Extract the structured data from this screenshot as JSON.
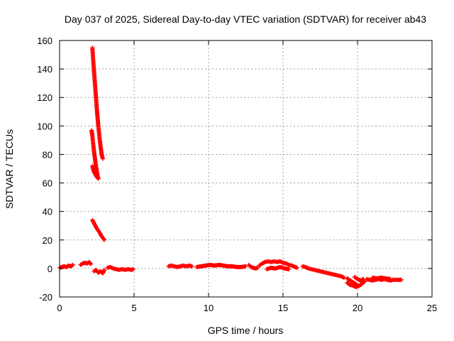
{
  "chart_data": {
    "type": "scatter",
    "title": "Day 037 of 2025, Sidereal Day-to-day VTEC variation (SDTVAR) for receiver ab43",
    "xlabel": "GPS time / hours",
    "ylabel": "SDTVAR / TECUs",
    "xlim": [
      0,
      25
    ],
    "ylim": [
      -20,
      160
    ],
    "xticks": [
      0,
      5,
      10,
      15,
      20,
      25
    ],
    "yticks": [
      -20,
      0,
      20,
      40,
      60,
      80,
      100,
      120,
      140,
      160
    ],
    "grid": true,
    "marker": "plus",
    "color": "#ff0000",
    "series": [
      {
        "name": "SDTVAR",
        "segments": [
          [
            [
              0.0,
              0.5
            ],
            [
              0.15,
              1.0
            ],
            [
              0.3,
              1.5
            ],
            [
              0.45,
              1.0
            ],
            [
              0.6,
              2.0
            ],
            [
              0.75,
              1.5
            ],
            [
              0.9,
              2.5
            ]
          ],
          [
            [
              1.4,
              2.5
            ],
            [
              1.55,
              3.5
            ],
            [
              1.7,
              4.0
            ],
            [
              1.85,
              3.5
            ],
            [
              2.0,
              4.5
            ],
            [
              2.1,
              3.0
            ]
          ],
          [
            [
              2.2,
              155
            ],
            [
              2.25,
              147
            ],
            [
              2.3,
              140
            ],
            [
              2.35,
              133
            ],
            [
              2.4,
              126
            ],
            [
              2.45,
              119
            ],
            [
              2.5,
              112
            ],
            [
              2.55,
              106
            ],
            [
              2.6,
              100
            ],
            [
              2.65,
              95
            ],
            [
              2.7,
              90
            ],
            [
              2.75,
              86
            ],
            [
              2.8,
              82
            ],
            [
              2.85,
              79
            ],
            [
              2.9,
              77
            ]
          ],
          [
            [
              2.15,
              97
            ],
            [
              2.2,
              93
            ],
            [
              2.25,
              88
            ],
            [
              2.3,
              83
            ],
            [
              2.35,
              79
            ],
            [
              2.4,
              75
            ],
            [
              2.45,
              71
            ],
            [
              2.5,
              68
            ],
            [
              2.55,
              65
            ],
            [
              2.6,
              63
            ]
          ],
          [
            [
              2.2,
              72
            ],
            [
              2.3,
              68
            ],
            [
              2.4,
              66
            ],
            [
              2.5,
              64
            ],
            [
              2.6,
              63
            ]
          ],
          [
            [
              2.2,
              34
            ],
            [
              2.3,
              32
            ],
            [
              2.4,
              30
            ],
            [
              2.5,
              28
            ],
            [
              2.6,
              26.5
            ],
            [
              2.7,
              25
            ],
            [
              2.8,
              23
            ],
            [
              2.9,
              21.5
            ],
            [
              3.0,
              20
            ]
          ],
          [
            [
              2.3,
              -2
            ],
            [
              2.45,
              -1
            ],
            [
              2.6,
              -3
            ],
            [
              2.75,
              -2
            ],
            [
              2.9,
              -3.5
            ],
            [
              3.0,
              -1
            ]
          ],
          [
            [
              3.2,
              0.5
            ],
            [
              3.4,
              1.0
            ],
            [
              3.6,
              0
            ],
            [
              3.8,
              -0.5
            ],
            [
              4.0,
              -1.0
            ],
            [
              4.2,
              -0.5
            ],
            [
              4.4,
              -1.0
            ],
            [
              4.6,
              -0.5
            ],
            [
              4.8,
              -1.0
            ],
            [
              4.95,
              -0.5
            ]
          ],
          [
            [
              7.3,
              1.5
            ],
            [
              7.5,
              2.0
            ],
            [
              7.7,
              1.5
            ],
            [
              7.9,
              1.0
            ],
            [
              8.1,
              1.5
            ],
            [
              8.3,
              2.0
            ],
            [
              8.5,
              1.5
            ],
            [
              8.7,
              2.0
            ],
            [
              8.9,
              1.5
            ]
          ],
          [
            [
              9.2,
              1.0
            ],
            [
              9.5,
              1.5
            ],
            [
              9.8,
              2.0
            ],
            [
              10.1,
              2.5
            ],
            [
              10.4,
              2.0
            ],
            [
              10.7,
              2.5
            ],
            [
              11.0,
              2.0
            ],
            [
              11.3,
              1.5
            ],
            [
              11.6,
              1.5
            ],
            [
              11.9,
              1.0
            ],
            [
              12.2,
              1.0
            ],
            [
              12.5,
              1.5
            ]
          ],
          [
            [
              12.7,
              2.5
            ],
            [
              12.85,
              1.0
            ],
            [
              13.0,
              0.5
            ],
            [
              13.15,
              0
            ],
            [
              13.3,
              0.5
            ]
          ],
          [
            [
              13.4,
              2.0
            ],
            [
              13.6,
              3.5
            ],
            [
              13.8,
              4.5
            ],
            [
              14.0,
              5.0
            ],
            [
              14.2,
              4.5
            ],
            [
              14.4,
              5.0
            ],
            [
              14.6,
              4.5
            ],
            [
              14.8,
              5.0
            ],
            [
              15.0,
              4.0
            ],
            [
              15.2,
              3.5
            ],
            [
              15.4,
              2.5
            ],
            [
              15.6,
              2.0
            ],
            [
              15.8,
              1.0
            ],
            [
              15.95,
              0.5
            ]
          ],
          [
            [
              13.9,
              -0.5
            ],
            [
              14.2,
              0.5
            ],
            [
              14.5,
              0
            ],
            [
              14.8,
              1.0
            ],
            [
              15.1,
              0
            ],
            [
              15.4,
              -0.5
            ]
          ],
          [
            [
              16.3,
              1.5
            ],
            [
              16.5,
              1.0
            ],
            [
              16.7,
              0
            ],
            [
              16.9,
              -0.5
            ],
            [
              17.1,
              -1.0
            ],
            [
              17.3,
              -1.5
            ],
            [
              17.5,
              -2.0
            ],
            [
              17.7,
              -2.5
            ],
            [
              17.9,
              -3.0
            ],
            [
              18.1,
              -3.5
            ],
            [
              18.3,
              -4.0
            ],
            [
              18.5,
              -4.5
            ],
            [
              18.7,
              -5.0
            ],
            [
              18.9,
              -5.5
            ],
            [
              19.1,
              -6.5
            ]
          ],
          [
            [
              19.3,
              -7.0
            ],
            [
              19.45,
              -8.0
            ],
            [
              19.6,
              -9.0
            ],
            [
              19.75,
              -10.0
            ],
            [
              19.9,
              -11.0
            ],
            [
              20.05,
              -12.5
            ],
            [
              20.2,
              -11.5
            ],
            [
              20.35,
              -10.0
            ],
            [
              20.5,
              -9.0
            ]
          ],
          [
            [
              19.3,
              -10.0
            ],
            [
              19.5,
              -11.5
            ],
            [
              19.7,
              -12.0
            ],
            [
              19.9,
              -13.0
            ],
            [
              20.1,
              -12.0
            ],
            [
              20.3,
              -11.0
            ]
          ],
          [
            [
              19.8,
              -6.0
            ],
            [
              20.0,
              -7.5
            ],
            [
              20.2,
              -8.5
            ],
            [
              20.4,
              -7.5
            ]
          ],
          [
            [
              20.6,
              -7.5
            ],
            [
              20.8,
              -8.0
            ],
            [
              21.0,
              -8.5
            ],
            [
              21.2,
              -8.0
            ],
            [
              21.4,
              -7.5
            ],
            [
              21.6,
              -8.0
            ],
            [
              21.8,
              -7.5
            ],
            [
              22.0,
              -8.0
            ],
            [
              22.2,
              -8.5
            ],
            [
              22.4,
              -8.0
            ],
            [
              22.6,
              -8.0
            ],
            [
              22.8,
              -8.0
            ],
            [
              22.95,
              -8.0
            ]
          ],
          [
            [
              21.0,
              -6.5
            ],
            [
              21.3,
              -7.0
            ],
            [
              21.6,
              -6.5
            ],
            [
              21.9,
              -7.0
            ],
            [
              22.2,
              -7.5
            ]
          ]
        ]
      }
    ]
  }
}
